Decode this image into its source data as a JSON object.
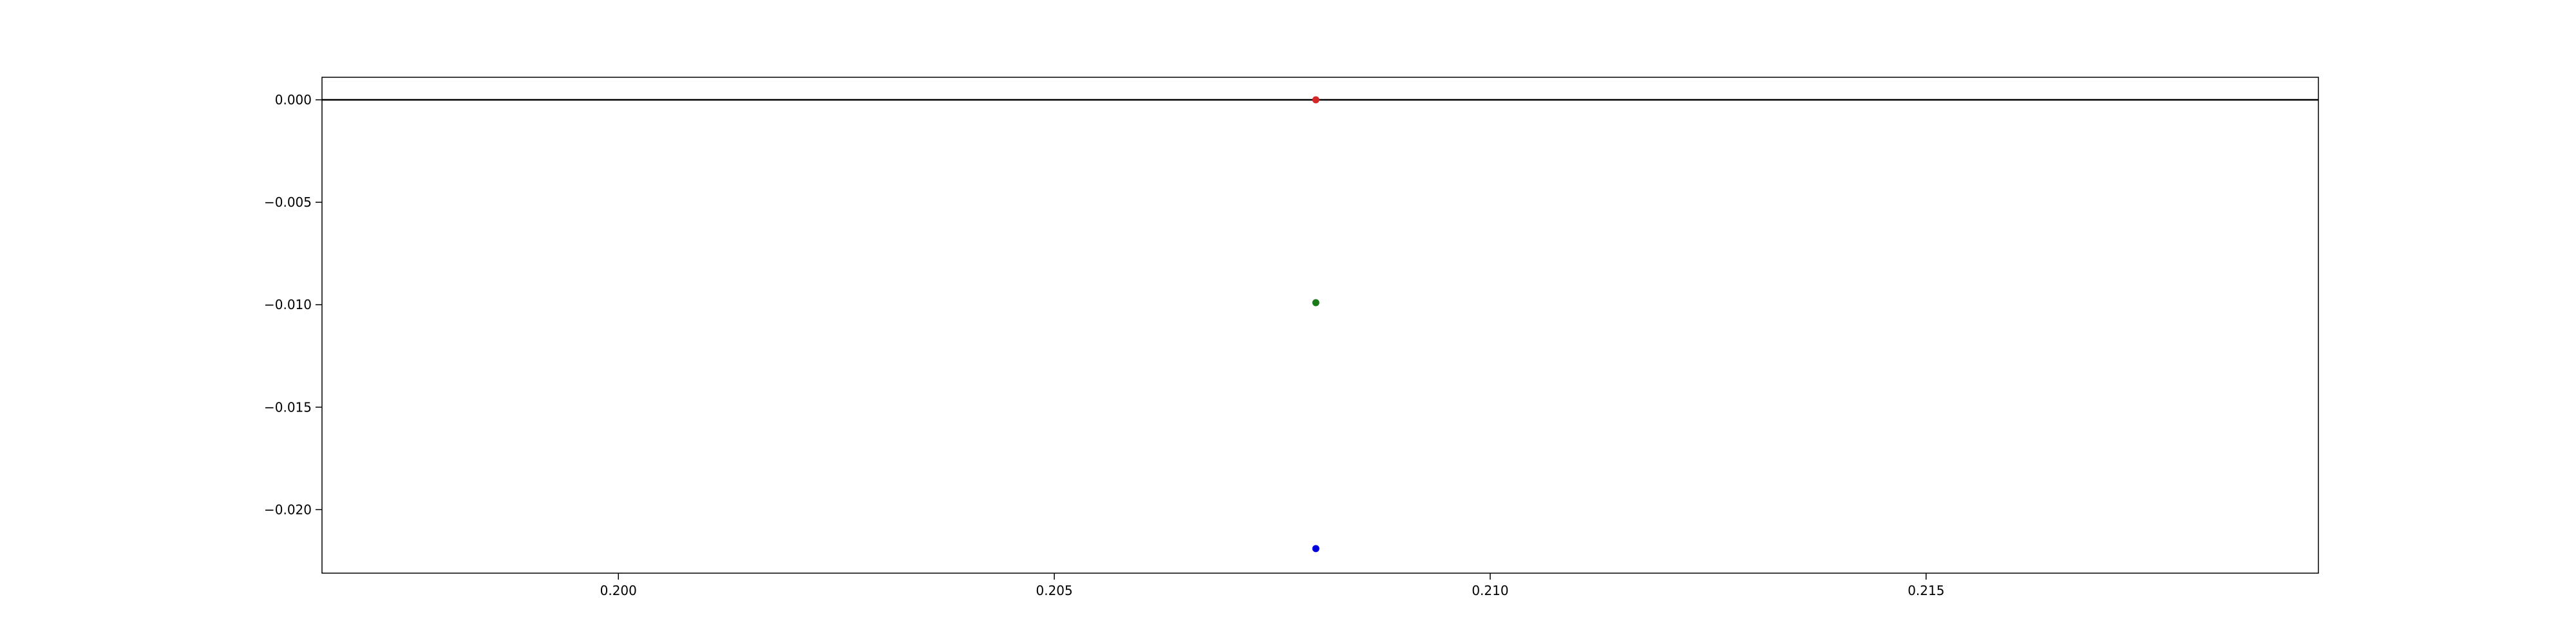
{
  "chart_data": {
    "type": "scatter",
    "title": "",
    "xlabel": "",
    "ylabel": "",
    "xlim": [
      0.1966,
      0.2195
    ],
    "ylim": [
      -0.0231,
      0.0011
    ],
    "x_ticks": [
      0.2,
      0.205,
      0.21,
      0.215
    ],
    "x_tick_labels": [
      "0.200",
      "0.205",
      "0.210",
      "0.215"
    ],
    "y_ticks": [
      0.0,
      -0.005,
      -0.01,
      -0.015,
      -0.02
    ],
    "y_tick_labels": [
      "0.000",
      "−0.005",
      "−0.010",
      "−0.015",
      "−0.020"
    ],
    "hline": {
      "y": 0.0,
      "color": "#000000"
    },
    "grid": false,
    "legend": "none",
    "points": [
      {
        "x": 0.208,
        "y": 0.0,
        "color": "#d62728"
      },
      {
        "x": 0.208,
        "y": -0.0099,
        "color": "#1a7a1a"
      },
      {
        "x": 0.208,
        "y": -0.0219,
        "color": "#0000dd"
      }
    ]
  }
}
